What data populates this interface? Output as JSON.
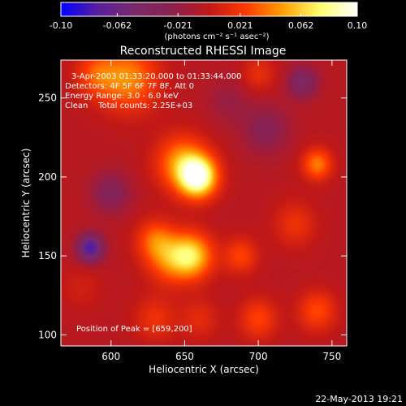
{
  "chart_data": {
    "type": "heatmap",
    "title": "Reconstructed RHESSI Image",
    "xlabel": "Heliocentric X (arcsec)",
    "ylabel": "Heliocentric Y (arcsec)",
    "xlim": [
      566,
      760
    ],
    "ylim": [
      93,
      274
    ],
    "x_ticks": [
      600,
      650,
      700,
      750
    ],
    "y_ticks": [
      100,
      150,
      200,
      250
    ],
    "colorbar": {
      "range": [
        -0.1,
        0.1
      ],
      "ticks": [
        -0.1,
        -0.062,
        -0.021,
        0.021,
        0.062,
        0.1
      ],
      "tick_labels": [
        "-0.10",
        "-0.062",
        "-0.021",
        "0.021",
        "0.062",
        "0.10"
      ],
      "units": "(photons cm⁻² s⁻¹ asec⁻²)",
      "colors": [
        "#0000ff",
        "#5a1e9e",
        "#7a2a6a",
        "#8a2050",
        "#c01818",
        "#ff3a00",
        "#ffa000",
        "#ffff70",
        "#ffffff"
      ]
    },
    "annotations": [
      "3-Apr-2003 01:33:20.000 to 01:33:44.000",
      "Detectors: 4F 5F 6F 7F 8F, Att 0",
      "Energy Range: 3.0 - 6.0 keV",
      "Clean    Total counts: 2.25E+03"
    ],
    "peak_label": "Position of Peak = [659,200]",
    "sources": [
      {
        "x": 659,
        "y": 200,
        "amp": 0.1,
        "sigma": 9
      },
      {
        "x": 648,
        "y": 209,
        "amp": 0.05,
        "sigma": 12
      },
      {
        "x": 655,
        "y": 150,
        "amp": 0.065,
        "sigma": 10
      },
      {
        "x": 640,
        "y": 148,
        "amp": 0.04,
        "sigma": 11
      },
      {
        "x": 630,
        "y": 160,
        "amp": 0.035,
        "sigma": 9
      },
      {
        "x": 612,
        "y": 262,
        "amp": 0.048,
        "sigma": 14
      },
      {
        "x": 590,
        "y": 265,
        "amp": 0.03,
        "sigma": 10
      },
      {
        "x": 700,
        "y": 265,
        "amp": 0.02,
        "sigma": 8
      },
      {
        "x": 740,
        "y": 208,
        "amp": 0.045,
        "sigma": 7
      },
      {
        "x": 725,
        "y": 170,
        "amp": 0.022,
        "sigma": 10
      },
      {
        "x": 688,
        "y": 150,
        "amp": 0.03,
        "sigma": 8
      },
      {
        "x": 700,
        "y": 110,
        "amp": 0.03,
        "sigma": 9
      },
      {
        "x": 740,
        "y": 115,
        "amp": 0.032,
        "sigma": 9
      },
      {
        "x": 580,
        "y": 130,
        "amp": 0.01,
        "sigma": 10
      },
      {
        "x": 630,
        "y": 110,
        "amp": 0.022,
        "sigma": 10
      },
      {
        "x": 660,
        "y": 110,
        "amp": 0.018,
        "sigma": 9
      },
      {
        "x": 600,
        "y": 190,
        "amp": -0.03,
        "sigma": 9
      },
      {
        "x": 586,
        "y": 155,
        "amp": -0.075,
        "sigma": 6
      },
      {
        "x": 730,
        "y": 260,
        "amp": -0.04,
        "sigma": 7
      },
      {
        "x": 705,
        "y": 230,
        "amp": -0.025,
        "sigma": 11
      },
      {
        "x": 680,
        "y": 248,
        "amp": -0.015,
        "sigma": 10
      }
    ],
    "background": -0.004
  },
  "footer": {
    "timestamp": "22-May-2013 19:21"
  }
}
